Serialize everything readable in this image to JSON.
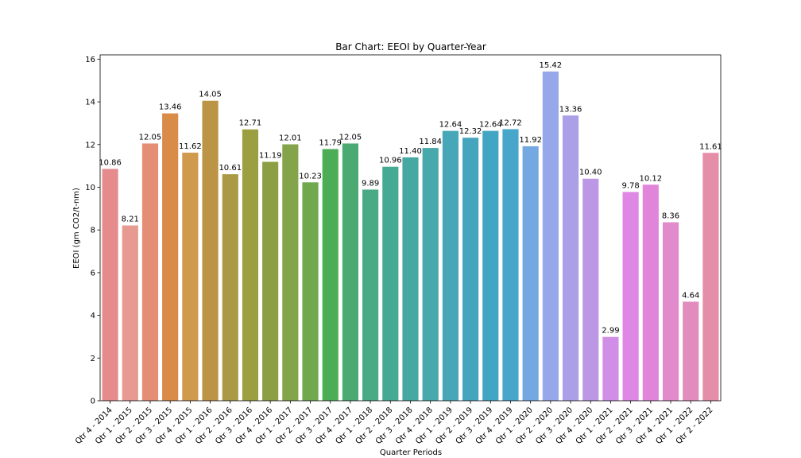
{
  "chart_data": {
    "type": "bar",
    "title": "Bar Chart: EEOI by Quarter-Year",
    "xlabel": "Quarter Periods",
    "ylabel": "EEOI (gm CO2/t-nm)",
    "ylim": [
      0,
      16.2
    ],
    "yticks": [
      0,
      2,
      4,
      6,
      8,
      10,
      12,
      14,
      16
    ],
    "grid": false,
    "categories": [
      "Qtr 4 - 2014",
      "Qtr 1 - 2015",
      "Qtr 2 - 2015",
      "Qtr 3 - 2015",
      "Qtr 4 - 2015",
      "Qtr 1 - 2016",
      "Qtr 2 - 2016",
      "Qtr 3 - 2016",
      "Qtr 4 - 2016",
      "Qtr 1 - 2017",
      "Qtr 2 - 2017",
      "Qtr 3 - 2017",
      "Qtr 4 - 2017",
      "Qtr 1 - 2018",
      "Qtr 2 - 2018",
      "Qtr 3 - 2018",
      "Qtr 4 - 2018",
      "Qtr 1 - 2019",
      "Qtr 2 - 2019",
      "Qtr 3 - 2019",
      "Qtr 4 - 2019",
      "Qtr 1 - 2020",
      "Qtr 2 - 2020",
      "Qtr 3 - 2020",
      "Qtr 4 - 2020",
      "Qtr 1 - 2021",
      "Qtr 2 - 2021",
      "Qtr 3 - 2021",
      "Qtr 4 - 2021",
      "Qtr 1 - 2022",
      "Qtr 2 - 2022"
    ],
    "values": [
      10.86,
      8.21,
      12.05,
      13.46,
      11.62,
      14.05,
      10.61,
      12.71,
      11.19,
      12.01,
      10.23,
      11.79,
      12.05,
      9.89,
      10.96,
      11.4,
      11.84,
      12.64,
      12.32,
      12.64,
      12.72,
      11.92,
      15.42,
      13.36,
      10.4,
      2.99,
      9.78,
      10.12,
      8.36,
      4.64,
      11.61
    ],
    "value_labels": [
      "10.86",
      "8.21",
      "12.05",
      "13.46",
      "11.62",
      "14.05",
      "10.61",
      "12.71",
      "11.19",
      "12.01",
      "10.23",
      "11.79",
      "12.05",
      "9.89",
      "10.96",
      "11.40",
      "11.84",
      "12.64",
      "12.32",
      "12.64",
      "12.72",
      "11.92",
      "15.42",
      "13.36",
      "10.40",
      "2.99",
      "9.78",
      "10.12",
      "8.36",
      "4.64",
      "11.61"
    ],
    "colors": [
      "#e58b8e",
      "#e69a91",
      "#e58e76",
      "#d98c48",
      "#d09a4e",
      "#bb9445",
      "#aa9a46",
      "#9c9f41",
      "#8c9f44",
      "#84a44b",
      "#6fa84d",
      "#4cad56",
      "#4aaa72",
      "#48ab85",
      "#46a994",
      "#46a9a1",
      "#48a9ac",
      "#47a6b7",
      "#45a5bd",
      "#43a5c4",
      "#48a6cb",
      "#74a8e0",
      "#96a8e9",
      "#ab9fe7",
      "#bc97e6",
      "#d08ee6",
      "#df87e4",
      "#e185db",
      "#e18bcc",
      "#e28cbe",
      "#e58ea8"
    ]
  }
}
